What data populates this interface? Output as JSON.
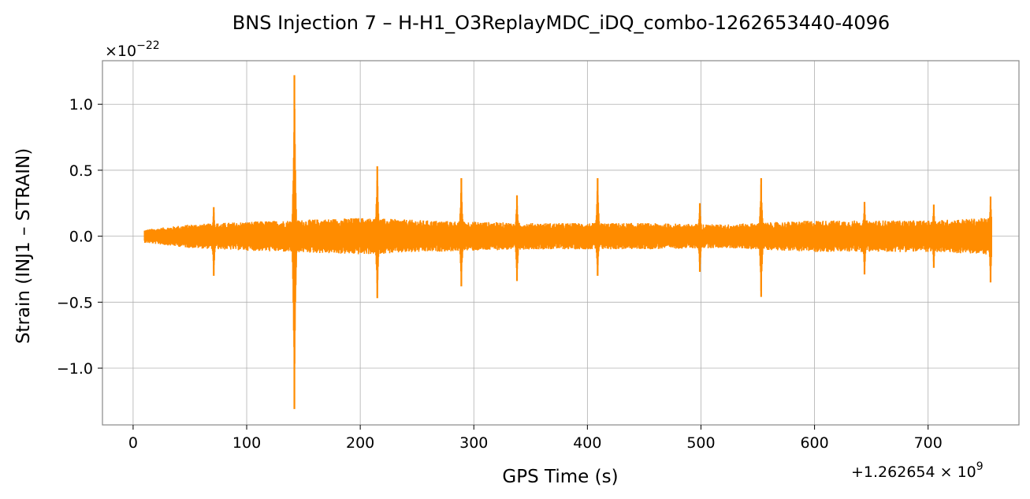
{
  "chart_data": {
    "type": "line",
    "title": "BNS Injection 7 – H-H1_O3ReplayMDC_iDQ_combo-1262653440-4096",
    "xlabel": "GPS Time (s)",
    "ylabel": "Strain (INJ1 – STRAIN)",
    "y_multiplier": "×10",
    "y_multiplier_exp": "−22",
    "x_offset": "+1.262654 × 10",
    "x_offset_exp": "9",
    "xlim": [
      -27,
      780
    ],
    "ylim": [
      -1.43,
      1.33
    ],
    "x_ticks": [
      0,
      100,
      200,
      300,
      400,
      500,
      600,
      700
    ],
    "x_tick_labels": [
      "0",
      "100",
      "200",
      "300",
      "400",
      "500",
      "600",
      "700"
    ],
    "y_ticks": [
      -1.0,
      -0.5,
      0.0,
      0.5,
      1.0
    ],
    "y_tick_labels": [
      "−1.0",
      "−0.5",
      "0.0",
      "0.5",
      "1.0"
    ],
    "grid": true,
    "color": "#ff8c00",
    "series": [
      {
        "x_range": [
          10,
          756
        ],
        "noise_envelope": [
          [
            10,
            0.05
          ],
          [
            50,
            0.09
          ],
          [
            100,
            0.11
          ],
          [
            200,
            0.14
          ],
          [
            260,
            0.12
          ],
          [
            350,
            0.1
          ],
          [
            450,
            0.1
          ],
          [
            520,
            0.09
          ],
          [
            600,
            0.12
          ],
          [
            700,
            0.12
          ],
          [
            756,
            0.14
          ]
        ],
        "spikes": [
          {
            "x": 71,
            "max": 0.22,
            "min": -0.3
          },
          {
            "x": 142,
            "max": 1.22,
            "min": -1.31
          },
          {
            "x": 215,
            "max": 0.53,
            "min": -0.47
          },
          {
            "x": 289,
            "max": 0.44,
            "min": -0.38
          },
          {
            "x": 338,
            "max": 0.31,
            "min": -0.34
          },
          {
            "x": 409,
            "max": 0.44,
            "min": -0.3
          },
          {
            "x": 499,
            "max": 0.25,
            "min": -0.27
          },
          {
            "x": 553,
            "max": 0.44,
            "min": -0.46
          },
          {
            "x": 644,
            "max": 0.26,
            "min": -0.29
          },
          {
            "x": 705,
            "max": 0.24,
            "min": -0.24
          },
          {
            "x": 755,
            "max": 0.3,
            "min": -0.35
          }
        ]
      }
    ]
  }
}
